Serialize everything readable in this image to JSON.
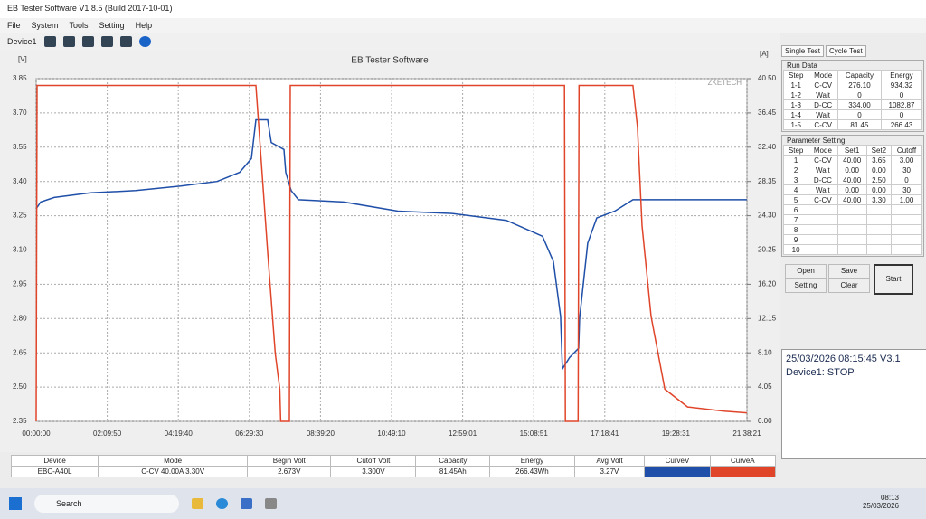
{
  "window": {
    "title": "EB Tester Software V1.8.5 (Build 2017-10-01)",
    "menu": [
      "File",
      "System",
      "Tools",
      "Setting",
      "Help"
    ],
    "device": "Device1"
  },
  "chart_data": {
    "type": "line",
    "title": "EB Tester Software",
    "watermark": "ZKETECH",
    "ylabel": "[V]",
    "y2label": "[A]",
    "xlim": [
      0,
      77901
    ],
    "xticks": [
      {
        "value": 0,
        "label": "00:00:00"
      },
      {
        "value": 7790,
        "label": "02:09:50"
      },
      {
        "value": 15580,
        "label": "04:19:40"
      },
      {
        "value": 23370,
        "label": "06:29:30"
      },
      {
        "value": 31160,
        "label": "08:39:20"
      },
      {
        "value": 38950,
        "label": "10:49:10"
      },
      {
        "value": 46741,
        "label": "12:59:01"
      },
      {
        "value": 54531,
        "label": "15:08:51"
      },
      {
        "value": 62321,
        "label": "17:18:41"
      },
      {
        "value": 70111,
        "label": "19:28:31"
      },
      {
        "value": 77901,
        "label": "21:38:21"
      }
    ],
    "ylim": [
      2.35,
      3.85
    ],
    "yticks": [
      2.35,
      {
        "value": 2.5,
        "label": "2.50"
      },
      2.65,
      {
        "value": 2.8,
        "label": "2.80"
      },
      2.95,
      {
        "value": 3.1,
        "label": "3.10"
      },
      3.25,
      {
        "value": 3.4,
        "label": "3.40"
      },
      3.55,
      {
        "value": 3.7,
        "label": "3.70"
      },
      3.85
    ],
    "y2lim": [
      0,
      40.5
    ],
    "y2ticks": [
      {
        "value": 0,
        "label": "0.00"
      },
      4.05,
      {
        "value": 8.1,
        "label": "8.10"
      },
      12.15,
      {
        "value": 16.2,
        "label": "16.20"
      },
      20.25,
      {
        "value": 24.3,
        "label": "24.30"
      },
      28.35,
      {
        "value": 32.4,
        "label": "32.40"
      },
      36.45,
      {
        "value": 40.5,
        "label": "40.50"
      }
    ],
    "grid": true,
    "series": [
      {
        "name": "CurveV",
        "color": "#1f4fa8",
        "x": [
          0,
          496,
          1982,
          5946,
          10901,
          15856,
          19820,
          22298,
          23586,
          24081,
          25370,
          25766,
          27153,
          27352,
          27946,
          28739,
          33694,
          39640,
          45586,
          51532,
          55496,
          56685,
          57478,
          57676,
          58469,
          59460,
          59559,
          60451,
          61442,
          63424,
          65406,
          77893
        ],
        "values": [
          3.28,
          3.31,
          3.33,
          3.35,
          3.36,
          3.38,
          3.4,
          3.44,
          3.5,
          3.67,
          3.67,
          3.57,
          3.54,
          3.44,
          3.36,
          3.32,
          3.31,
          3.27,
          3.26,
          3.23,
          3.16,
          3.05,
          2.81,
          2.58,
          2.63,
          2.67,
          2.8,
          3.13,
          3.24,
          3.27,
          3.32,
          3.32
        ]
      },
      {
        "name": "CurveA",
        "color": "#e0452a",
        "axis": "y2",
        "x": [
          0,
          100,
          24081,
          25370,
          26200,
          26700,
          26800,
          27750,
          27850,
          57900,
          58000,
          59400,
          59500,
          65406,
          65900,
          66400,
          67400,
          68900,
          71400,
          75400,
          77893
        ],
        "values": [
          0,
          39.7,
          39.7,
          20,
          8,
          3.8,
          0,
          0,
          39.7,
          39.7,
          0,
          0,
          39.7,
          39.7,
          34.8,
          23.1,
          12.4,
          3.8,
          1.7,
          1.2,
          1.0
        ]
      }
    ]
  },
  "summary": {
    "headers": [
      "Device",
      "Mode",
      "Begin Volt",
      "Cutoff Volt",
      "Capacity",
      "Energy",
      "Avg Volt"
    ],
    "row": [
      "EBC-A40L",
      "C-CV 40.00A 3.30V",
      "2.673V",
      "3.300V",
      "81.45Ah",
      "266.43Wh",
      "3.27V"
    ]
  },
  "panel": {
    "tabs": [
      "Single Test",
      "Cycle Test"
    ],
    "run_data": {
      "title": "Run Data",
      "headers": [
        "Step",
        "Mode",
        "Capacity",
        "Energy"
      ],
      "rows": [
        [
          "1-1",
          "C-CV",
          "276.10",
          "934.32"
        ],
        [
          "1-2",
          "Wait",
          "0",
          "0"
        ],
        [
          "1-3",
          "D-CC",
          "334.00",
          "1082.87"
        ],
        [
          "1-4",
          "Wait",
          "0",
          "0"
        ],
        [
          "1-5",
          "C-CV",
          "81.45",
          "266.43"
        ]
      ]
    },
    "parameter_setting": {
      "title": "Parameter Setting",
      "headers": [
        "Step",
        "Mode",
        "Set1",
        "Set2",
        "Cutoff"
      ],
      "rows": [
        [
          "1",
          "C-CV",
          "40.00",
          "3.65",
          "3.00"
        ],
        [
          "2",
          "Wait",
          "0.00",
          "0.00",
          "30"
        ],
        [
          "3",
          "D-CC",
          "40.00",
          "2.50",
          "0"
        ],
        [
          "4",
          "Wait",
          "0.00",
          "0.00",
          "30"
        ],
        [
          "5",
          "C-CV",
          "40.00",
          "3.30",
          "1.00"
        ],
        [
          "6"
        ],
        [
          "7"
        ],
        [
          "8"
        ],
        [
          "9"
        ],
        [
          "10"
        ]
      ]
    },
    "buttons": [
      "Open",
      "Save",
      "Setting",
      "Clear",
      "Start"
    ],
    "status": {
      "time": "25/03/2026 08:15:45",
      "version": "V3.1",
      "device": "Device1: STOP"
    }
  },
  "taskbar": {
    "search": "Search",
    "time": "08:13",
    "date": "25/03/2026"
  }
}
